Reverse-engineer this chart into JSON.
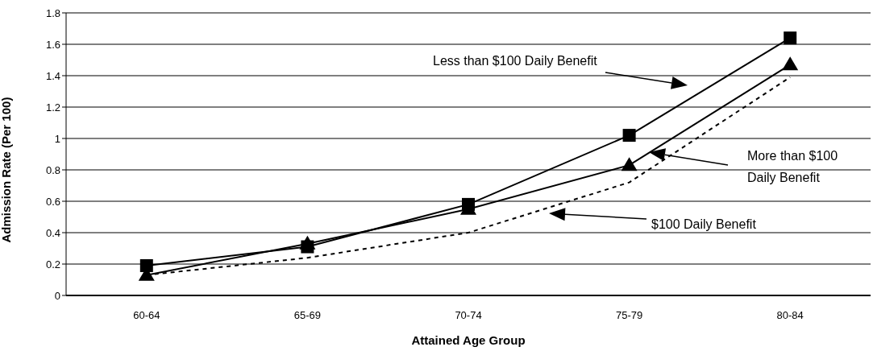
{
  "chart_data": {
    "type": "line",
    "xlabel": "Attained Age Group",
    "ylabel": "Admission Rate (Per 100)",
    "categories": [
      "60-64",
      "65-69",
      "70-74",
      "75-79",
      "80-84"
    ],
    "series": [
      {
        "color": "#000000",
        "marker": "square",
        "line_style": "solid",
        "values": [
          0.19,
          0.31,
          0.58,
          1.02,
          1.64
        ]
      },
      {
        "color": "#000000",
        "marker": "triangle",
        "line_style": "solid",
        "values": [
          0.13,
          0.33,
          0.55,
          0.83,
          1.47
        ]
      },
      {
        "color": "#000000",
        "marker": "none",
        "line_style": "dashed",
        "values": [
          0.13,
          0.24,
          0.4,
          0.72,
          1.39
        ]
      }
    ],
    "annotations": [
      "Less than $100 Daily Benefit",
      "More than $100 Daily Benefit",
      "$100 Daily Benefit"
    ],
    "ylim": [
      0,
      1.8
    ],
    "yticks": [
      0,
      0.2,
      0.4,
      0.6,
      0.8,
      1,
      1.2,
      1.4,
      1.6,
      1.8
    ],
    "grid": "y"
  }
}
